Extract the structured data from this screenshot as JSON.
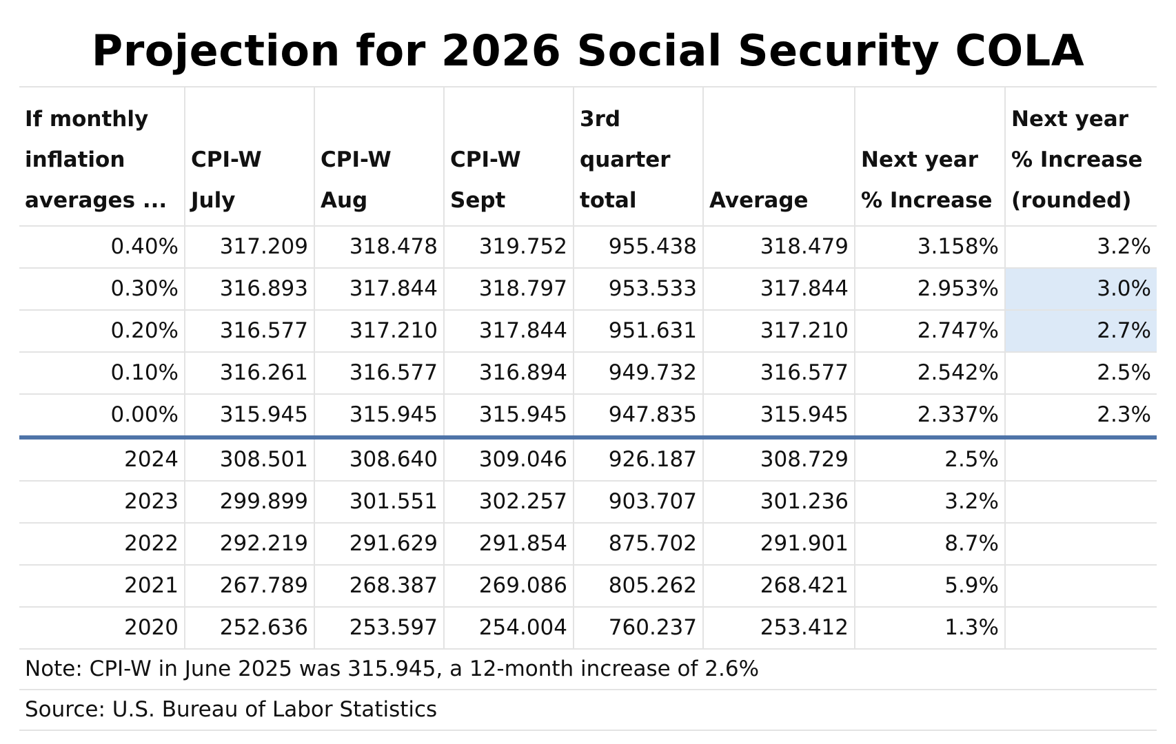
{
  "title": "Projection for 2026 Social Security COLA",
  "headers": [
    "If monthly inflation averages ...",
    "CPI-W July",
    "CPI-W Aug",
    "CPI-W Sept",
    "3rd quarter total",
    "Average",
    "Next year % Increase",
    "Next year % Increase (rounded)"
  ],
  "projection_rows": [
    [
      "0.40%",
      "317.209",
      "318.478",
      "319.752",
      "955.438",
      "318.479",
      "3.158%",
      "3.2%"
    ],
    [
      "0.30%",
      "316.893",
      "317.844",
      "318.797",
      "953.533",
      "317.844",
      "2.953%",
      "3.0%"
    ],
    [
      "0.20%",
      "316.577",
      "317.210",
      "317.844",
      "951.631",
      "317.210",
      "2.747%",
      "2.7%"
    ],
    [
      "0.10%",
      "316.261",
      "316.577",
      "316.894",
      "949.732",
      "316.577",
      "2.542%",
      "2.5%"
    ],
    [
      "0.00%",
      "315.945",
      "315.945",
      "315.945",
      "947.835",
      "315.945",
      "2.337%",
      "2.3%"
    ]
  ],
  "historical_rows": [
    [
      "2024",
      "308.501",
      "308.640",
      "309.046",
      "926.187",
      "308.729",
      "2.5%",
      ""
    ],
    [
      "2023",
      "299.899",
      "301.551",
      "302.257",
      "903.707",
      "301.236",
      "3.2%",
      ""
    ],
    [
      "2022",
      "292.219",
      "291.629",
      "291.854",
      "875.702",
      "291.901",
      "8.7%",
      ""
    ],
    [
      "2021",
      "267.789",
      "268.387",
      "269.086",
      "805.262",
      "268.421",
      "5.9%",
      ""
    ],
    [
      "2020",
      "252.636",
      "253.597",
      "254.004",
      "760.237",
      "253.412",
      "1.3%",
      ""
    ]
  ],
  "note": "Note: CPI-W in June 2025 was 315.945, a 12-month increase of 2.6%",
  "source": "Source: U.S. Bureau of Labor Statistics",
  "colors": {
    "highlight": "#dce9f7",
    "separator": "#4f74a8",
    "gridline": "#e3e3e3"
  }
}
